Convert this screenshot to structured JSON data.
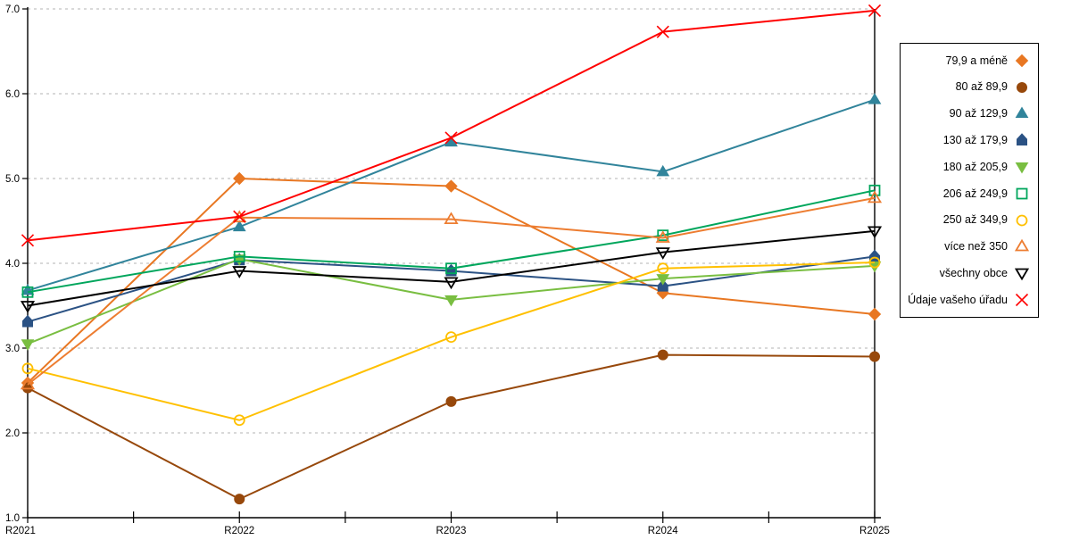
{
  "chart_data": {
    "type": "line",
    "title": "",
    "xlabel": "",
    "ylabel": "",
    "categories": [
      "R2021",
      "R2022",
      "R2023",
      "R2024",
      "R2025"
    ],
    "ylim": [
      1.0,
      7.0
    ],
    "ytick_step": 1.0,
    "ytick_labels": [
      "1.0",
      "2.0",
      "3.0",
      "4.0",
      "5.0",
      "6.0",
      "7.0"
    ],
    "grid": "horizontal dashed gray lines at each integer",
    "gridline_color": "#b3b3b3",
    "axis_color": "#000000",
    "legend_position": "right-box",
    "series": [
      {
        "name": "79,9 a méně",
        "marker": "diamond",
        "fill": "solid",
        "color": "#E87722",
        "values": [
          2.59,
          5.0,
          4.91,
          3.65,
          3.4
        ]
      },
      {
        "name": "80 až 89,9",
        "marker": "circle",
        "fill": "solid",
        "color": "#97480B",
        "values": [
          2.53,
          1.22,
          2.37,
          2.92,
          2.9
        ]
      },
      {
        "name": "90 až 129,9",
        "marker": "triangle-up",
        "fill": "solid",
        "color": "#31849B",
        "values": [
          3.68,
          4.43,
          5.43,
          5.08,
          5.93
        ]
      },
      {
        "name": "130 až 179,9",
        "marker": "pentagon",
        "fill": "solid",
        "color": "#2B5284",
        "values": [
          3.31,
          4.04,
          3.91,
          3.73,
          4.08
        ]
      },
      {
        "name": "180 až 205,9",
        "marker": "triangle-down",
        "fill": "solid",
        "color": "#79BE41",
        "values": [
          3.05,
          4.05,
          3.57,
          3.82,
          3.97
        ]
      },
      {
        "name": "206 až 249,9",
        "marker": "square",
        "fill": "open",
        "color": "#00A65C",
        "values": [
          3.66,
          4.08,
          3.94,
          4.33,
          4.86
        ]
      },
      {
        "name": "250 až 349,9",
        "marker": "circle",
        "fill": "open",
        "color": "#FFC000",
        "values": [
          2.76,
          2.15,
          3.13,
          3.94,
          4.01
        ]
      },
      {
        "name": "více než 350",
        "marker": "triangle-up",
        "fill": "open",
        "color": "#ED7D31",
        "values": [
          2.57,
          4.54,
          4.52,
          4.3,
          4.77
        ]
      },
      {
        "name": "všechny obce",
        "marker": "triangle-down",
        "fill": "open",
        "color": "#000000",
        "values": [
          3.5,
          3.91,
          3.78,
          4.13,
          4.38
        ]
      },
      {
        "name": "Údaje vašeho úřadu",
        "marker": "x",
        "fill": "open",
        "color": "#FF0000",
        "values": [
          4.27,
          4.55,
          5.48,
          6.73,
          6.98
        ]
      }
    ]
  }
}
